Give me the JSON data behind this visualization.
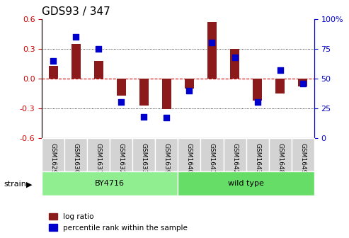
{
  "title": "GDS93 / 347",
  "samples": [
    "GSM1629",
    "GSM1630",
    "GSM1631",
    "GSM1632",
    "GSM1633",
    "GSM1639",
    "GSM1640",
    "GSM1641",
    "GSM1642",
    "GSM1643",
    "GSM1648",
    "GSM1649"
  ],
  "log_ratio": [
    0.13,
    0.35,
    0.18,
    -0.17,
    -0.27,
    -0.31,
    -0.1,
    0.57,
    0.3,
    -0.22,
    -0.15,
    -0.08
  ],
  "percentile_rank": [
    65,
    85,
    75,
    30,
    18,
    17,
    40,
    80,
    68,
    30,
    57,
    46
  ],
  "strain_groups": [
    {
      "label": "BY4716",
      "start": 0,
      "end": 6,
      "color": "#90EE90"
    },
    {
      "label": "wild type",
      "start": 6,
      "end": 12,
      "color": "#66DD66"
    }
  ],
  "bar_color": "#8B1A1A",
  "dot_color": "#0000CC",
  "left_axis_color": "#CC0000",
  "right_axis_color": "#0000CC",
  "ylim_left": [
    -0.6,
    0.6
  ],
  "ylim_right": [
    0,
    100
  ],
  "yticks_left": [
    -0.6,
    -0.3,
    0.0,
    0.3,
    0.6
  ],
  "yticks_right": [
    0,
    25,
    50,
    75,
    100
  ],
  "hline_color": "#CC0000",
  "grid_color": "#000000",
  "background_color": "#ffffff",
  "bar_width": 0.4,
  "dot_size": 40,
  "strain_label": "strain",
  "legend_log_ratio": "log ratio",
  "legend_percentile": "percentile rank within the sample"
}
